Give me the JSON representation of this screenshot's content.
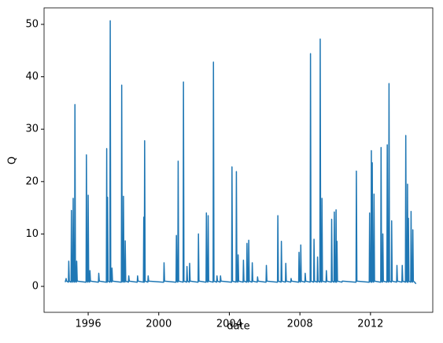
{
  "chart_data": {
    "type": "line",
    "xlabel": "date",
    "ylabel": "Q",
    "x": [
      1994.7,
      1994.75,
      1994.78,
      1994.88,
      1994.9,
      1994.93,
      1995.03,
      1995.05,
      1995.08,
      1995.13,
      1995.15,
      1995.18,
      1995.23,
      1995.25,
      1995.28,
      1995.33,
      1995.35,
      1995.38,
      1995.88,
      1995.9,
      1995.93,
      1995.98,
      1996.0,
      1996.03,
      1996.08,
      1996.1,
      1996.13,
      1996.58,
      1996.6,
      1996.63,
      1997.03,
      1997.05,
      1997.07,
      1997.08,
      1997.1,
      1997.13,
      1997.23,
      1997.25,
      1997.28,
      1997.33,
      1997.35,
      1997.38,
      1997.88,
      1997.9,
      1997.93,
      1997.98,
      1998.0,
      1998.03,
      1998.08,
      1998.1,
      1998.13,
      1998.28,
      1998.3,
      1998.33,
      1998.78,
      1998.8,
      1998.83,
      1999.13,
      1999.15,
      1999.17,
      1999.18,
      1999.2,
      1999.23,
      1999.38,
      1999.4,
      1999.43,
      2000.28,
      2000.3,
      2000.33,
      2000.98,
      2001.0,
      2001.03,
      2001.08,
      2001.1,
      2001.13,
      2001.38,
      2001.4,
      2001.43,
      2001.58,
      2001.6,
      2001.63,
      2001.73,
      2001.75,
      2001.78,
      2002.23,
      2002.25,
      2002.28,
      2002.68,
      2002.7,
      2002.73,
      2002.78,
      2002.8,
      2002.83,
      2003.08,
      2003.1,
      2003.13,
      2003.28,
      2003.3,
      2003.33,
      2003.48,
      2003.5,
      2003.53,
      2004.13,
      2004.15,
      2004.18,
      2004.38,
      2004.4,
      2004.43,
      2004.48,
      2004.5,
      2004.53,
      2004.78,
      2004.8,
      2004.83,
      2004.98,
      2005.0,
      2005.03,
      2005.08,
      2005.1,
      2005.13,
      2005.28,
      2005.3,
      2005.33,
      2005.58,
      2005.6,
      2005.63,
      2006.08,
      2006.1,
      2006.13,
      2006.73,
      2006.75,
      2006.78,
      2006.93,
      2006.95,
      2006.98,
      2007.18,
      2007.2,
      2007.23,
      2007.48,
      2007.5,
      2007.53,
      2007.93,
      2007.95,
      2007.98,
      2008.03,
      2008.05,
      2008.08,
      2008.28,
      2008.3,
      2008.33,
      2008.58,
      2008.6,
      2008.63,
      2008.78,
      2008.8,
      2008.83,
      2008.98,
      2009.0,
      2009.03,
      2009.13,
      2009.15,
      2009.18,
      2009.23,
      2009.25,
      2009.28,
      2009.48,
      2009.5,
      2009.53,
      2009.78,
      2009.8,
      2009.83,
      2009.93,
      2009.95,
      2009.98,
      2010.03,
      2010.05,
      2010.07,
      2010.08,
      2010.1,
      2010.13,
      2010.38,
      2010.4,
      2010.43,
      2011.18,
      2011.2,
      2011.23,
      2011.93,
      2011.95,
      2011.98,
      2012.03,
      2012.05,
      2012.07,
      2012.08,
      2012.1,
      2012.13,
      2012.18,
      2012.2,
      2012.23,
      2012.58,
      2012.6,
      2012.63,
      2012.68,
      2012.7,
      2012.73,
      2012.93,
      2012.95,
      2012.98,
      2013.03,
      2013.05,
      2013.08,
      2013.18,
      2013.2,
      2013.23,
      2013.48,
      2013.5,
      2013.53,
      2013.78,
      2013.8,
      2013.83,
      2013.98,
      2014.0,
      2014.03,
      2014.08,
      2014.1,
      2014.12,
      2014.13,
      2014.15,
      2014.18,
      2014.28,
      2014.3,
      2014.33,
      2014.38,
      2014.4,
      2014.43,
      2014.53,
      2014.55,
      2014.58
    ],
    "series": [
      {
        "color": "#1f77b4",
        "values": [
          0.8,
          1.5,
          1.0,
          0.8,
          4.8,
          1.0,
          0.8,
          14.5,
          1.0,
          0.8,
          16.8,
          1.0,
          0.8,
          34.7,
          1.0,
          0.8,
          4.8,
          1.0,
          0.8,
          25.1,
          1.0,
          0.8,
          17.4,
          1.0,
          0.8,
          3,
          1.0,
          0.8,
          2.5,
          1.0,
          0.8,
          26.3,
          1.0,
          0.8,
          17,
          1.0,
          0.8,
          50.7,
          1.0,
          0.8,
          3.5,
          1.0,
          0.8,
          38.4,
          1.0,
          0.8,
          17.2,
          1.0,
          0.8,
          8.7,
          1.0,
          0.8,
          2,
          1.0,
          0.8,
          2,
          1.0,
          0.8,
          13.2,
          1.0,
          0.8,
          27.8,
          1.0,
          0.8,
          2,
          1.0,
          0.8,
          4.5,
          1.0,
          0.8,
          9.7,
          1.0,
          0.8,
          23.9,
          1.0,
          0.8,
          39,
          1.0,
          0.8,
          3.8,
          1.0,
          0.8,
          4.4,
          1.0,
          0.8,
          10,
          1.0,
          0.8,
          14,
          1.0,
          0.8,
          13.5,
          1.0,
          0.8,
          42.8,
          1.0,
          0.8,
          2,
          1.0,
          0.8,
          2,
          1.0,
          0.8,
          22.8,
          1.0,
          0.8,
          21.9,
          1.0,
          0.8,
          6,
          1.0,
          0.8,
          5,
          1.0,
          0.8,
          8.2,
          1.0,
          0.8,
          8.8,
          1.0,
          0.8,
          4.5,
          1.0,
          0.8,
          1.8,
          1.0,
          0.8,
          4,
          1.0,
          0.8,
          13.5,
          1.0,
          0.8,
          8.6,
          1.0,
          0.8,
          4.4,
          1.0,
          0.8,
          1.5,
          1.0,
          0.8,
          6.5,
          1.0,
          0.8,
          7.9,
          1.0,
          0.8,
          2.5,
          1.0,
          0.8,
          44.4,
          1.0,
          0.8,
          9,
          1.0,
          0.8,
          5.6,
          1.0,
          0.8,
          47.2,
          1.0,
          0.8,
          16.8,
          1.0,
          0.8,
          3,
          1.0,
          0.8,
          12.8,
          1.0,
          0.8,
          14.2,
          1.0,
          0.8,
          14.6,
          1.0,
          0.8,
          8.6,
          1.0,
          0.8,
          1,
          1.0,
          0.8,
          22,
          1.0,
          0.8,
          14,
          1.0,
          0.8,
          25.9,
          1.0,
          0.8,
          23.6,
          1.0,
          0.8,
          17.6,
          1.0,
          0.8,
          26.5,
          1.0,
          0.8,
          10,
          1.0,
          0.8,
          27,
          1.0,
          0.8,
          38.7,
          1.0,
          0.8,
          12.5,
          1.0,
          0.8,
          4,
          1.0,
          0.8,
          4,
          1.0,
          0.8,
          28.8,
          1.0,
          0.8,
          19.5,
          1.0,
          0.8,
          13,
          1.0,
          0.8,
          14.3,
          1.0,
          0.8,
          10.8,
          1.0,
          0.7,
          0.6,
          0.5
        ]
      }
    ],
    "xlim": [
      1993.5,
      2015.53
    ],
    "xticks": [
      1996,
      2000,
      2004,
      2008,
      2012
    ],
    "ylim": [
      -4.95,
      53.15
    ],
    "yticks": [
      0,
      10,
      20,
      30,
      40,
      50
    ]
  }
}
